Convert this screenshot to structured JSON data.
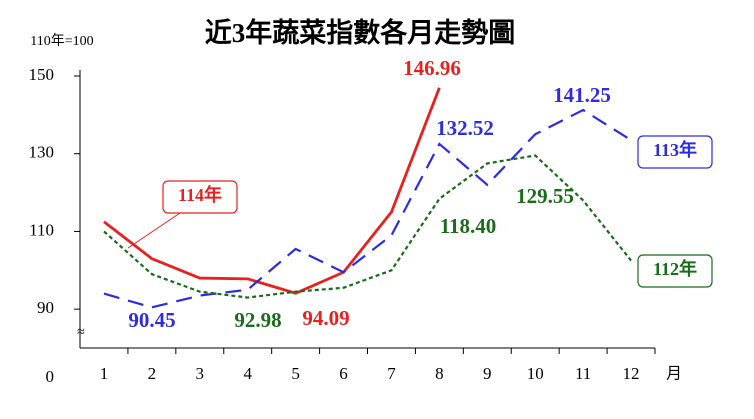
{
  "chart_data": {
    "type": "line",
    "title": "近3年蔬菜指數各月走勢圖",
    "y_axis_label": "110年=100",
    "x_axis_label": "月",
    "categories": [
      "1",
      "2",
      "3",
      "4",
      "5",
      "6",
      "7",
      "8",
      "9",
      "10",
      "11",
      "12"
    ],
    "ylim": [
      80,
      150
    ],
    "yticks": [
      0,
      90,
      110,
      130,
      150
    ],
    "axis_break": true,
    "series": [
      {
        "name": "114年",
        "color": "#e8201e",
        "style": "solid",
        "values": [
          112.5,
          103,
          98,
          97.8,
          94.09,
          99.5,
          115,
          146.96,
          null,
          null,
          null,
          null
        ],
        "value_labels": [
          null,
          null,
          null,
          null,
          "94.09",
          null,
          null,
          "146.96",
          null,
          null,
          null,
          null
        ]
      },
      {
        "name": "113年",
        "color": "#2c2ce0",
        "style": "dashed",
        "values": [
          94,
          90.45,
          93.5,
          95,
          105.5,
          99.5,
          109,
          132.52,
          122,
          135,
          141.25,
          133.5
        ],
        "value_labels": [
          null,
          "90.45",
          null,
          null,
          null,
          null,
          null,
          "132.52",
          null,
          null,
          "141.25",
          null
        ]
      },
      {
        "name": "112年",
        "color": "#1a6b1a",
        "style": "dotted",
        "values": [
          110,
          99,
          94.5,
          92.98,
          94.5,
          95.5,
          100,
          118.4,
          127.5,
          129.55,
          118,
          102.5
        ],
        "value_labels": [
          null,
          null,
          null,
          "92.98",
          null,
          null,
          null,
          "118.40",
          null,
          "129.55",
          null,
          null
        ]
      }
    ]
  }
}
